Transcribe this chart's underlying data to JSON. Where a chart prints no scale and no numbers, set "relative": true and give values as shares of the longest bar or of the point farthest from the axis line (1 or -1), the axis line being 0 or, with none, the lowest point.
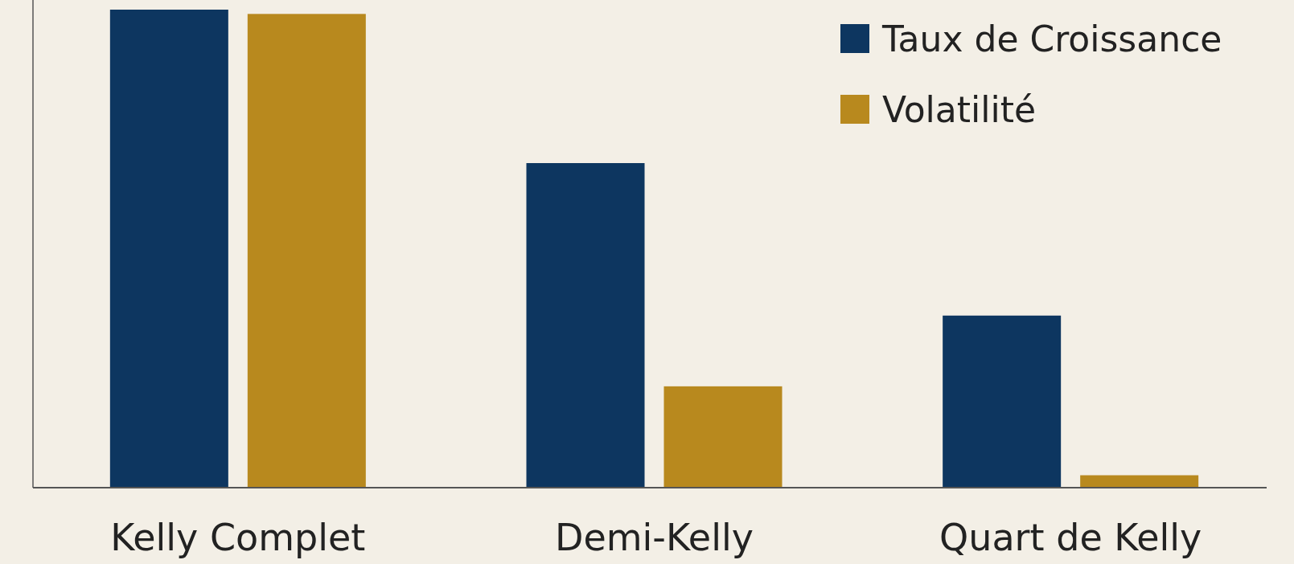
{
  "chart_data": {
    "type": "bar",
    "relative": true,
    "categories": [
      "Kelly Complet",
      "Demi-Kelly",
      "Quart de Kelly"
    ],
    "series": [
      {
        "name": "Taux de Croissance",
        "color": "#0d3660",
        "values": [
          1,
          0.679,
          0.36
        ]
      },
      {
        "name": "Volatilité",
        "color": "#b8891e",
        "values": [
          0.991,
          0.212,
          0.026
        ]
      }
    ],
    "legend": "top right"
  }
}
